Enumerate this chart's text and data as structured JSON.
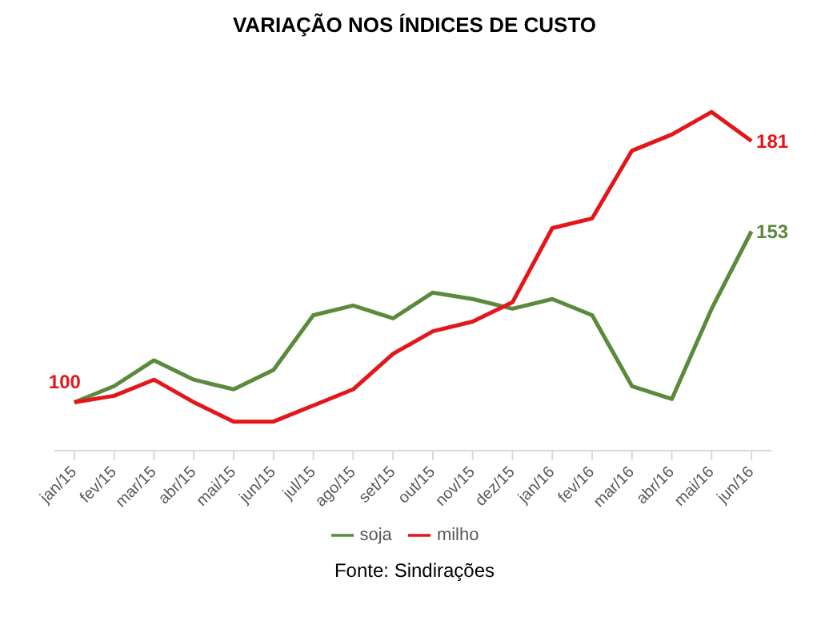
{
  "chart_data": {
    "type": "line",
    "title": "VARIAÇÃO NOS ÍNDICES DE CUSTO",
    "categories": [
      "jan/15",
      "fev/15",
      "mar/15",
      "abr/15",
      "mai/15",
      "jun/15",
      "jul/15",
      "ago/15",
      "set/15",
      "out/15",
      "nov/15",
      "dez/15",
      "jan/16",
      "fev/16",
      "mar/16",
      "abr/16",
      "mai/16",
      "jun/16"
    ],
    "series": [
      {
        "name": "soja",
        "color": "#5b8a3c",
        "values": [
          100,
          105,
          113,
          107,
          104,
          110,
          127,
          130,
          126,
          134,
          132,
          129,
          132,
          127,
          105,
          101,
          129,
          153
        ],
        "value_labels": [
          null,
          null,
          null,
          null,
          null,
          null,
          null,
          null,
          null,
          null,
          null,
          null,
          null,
          null,
          null,
          null,
          null,
          "153"
        ]
      },
      {
        "name": "milho",
        "color": "#e3161c",
        "values": [
          100,
          102,
          107,
          100,
          94,
          94,
          99,
          104,
          115,
          122,
          125,
          131,
          154,
          157,
          178,
          183,
          190,
          181
        ],
        "value_labels": [
          "100",
          null,
          null,
          null,
          null,
          null,
          null,
          null,
          null,
          null,
          null,
          null,
          null,
          null,
          null,
          null,
          null,
          "181"
        ]
      }
    ],
    "tick_labels": "x",
    "legend": "bottom",
    "marker": "none",
    "line_style": "solid",
    "annotations": [
      "Fonte: Sindirações"
    ]
  }
}
